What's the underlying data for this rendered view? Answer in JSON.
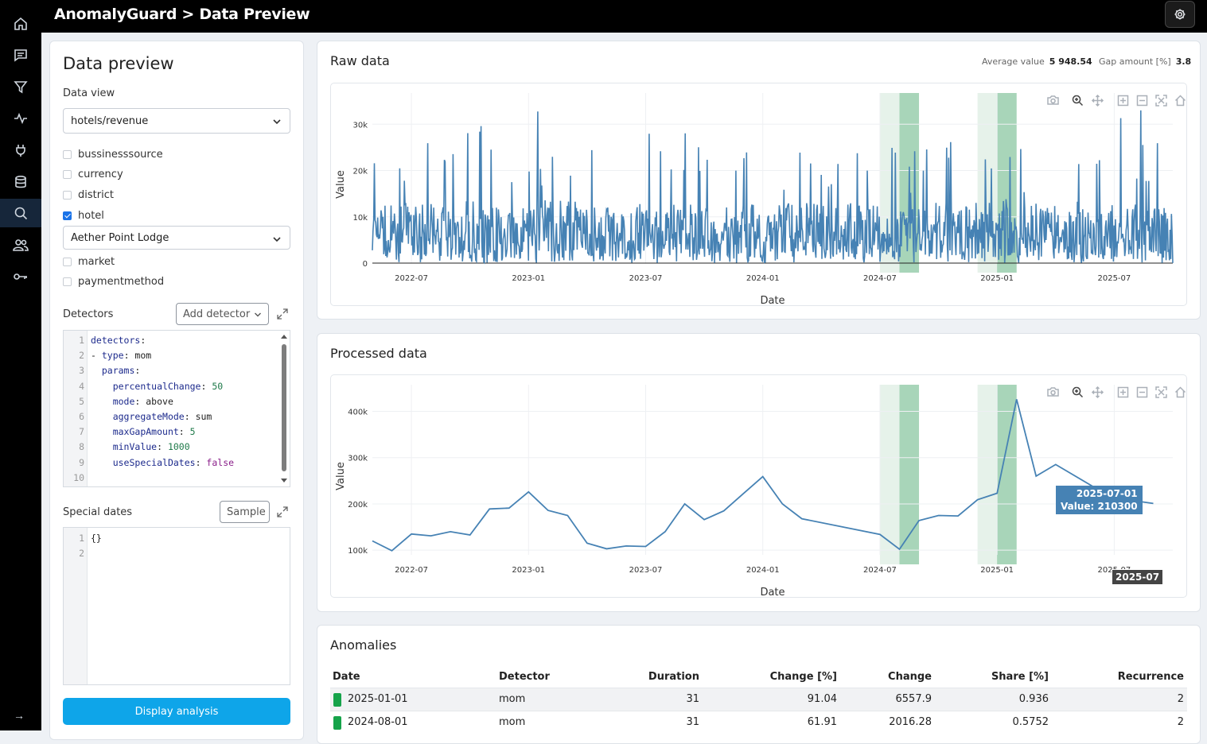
{
  "app": {
    "title": "AnomalyGuard > Data Preview"
  },
  "nav": {
    "items": [
      "home-icon",
      "chat-icon",
      "filter-icon",
      "activity-icon",
      "plug-icon",
      "database-icon",
      "search-icon",
      "users-icon",
      "key-icon"
    ],
    "active": "search-icon",
    "collapse": "→"
  },
  "left": {
    "title": "Data preview",
    "data_view_label": "Data view",
    "data_view_value": "hotels/revenue",
    "dimensions": [
      {
        "label": "bussinesssource",
        "checked": false
      },
      {
        "label": "currency",
        "checked": false
      },
      {
        "label": "district",
        "checked": false
      },
      {
        "label": "hotel",
        "checked": true
      },
      {
        "label": "market",
        "checked": false
      },
      {
        "label": "paymentmethod",
        "checked": false
      }
    ],
    "hotel_value": "Aether Point Lodge",
    "detectors_label": "Detectors",
    "add_detector": "Add detector",
    "detectors_code": [
      {
        "n": "1",
        "parts": [
          [
            "k",
            "detectors"
          ],
          [
            "v",
            ":"
          ]
        ]
      },
      {
        "n": "2",
        "parts": [
          [
            "v",
            "- "
          ],
          [
            "k",
            "type"
          ],
          [
            "v",
            ": mom"
          ]
        ]
      },
      {
        "n": "3",
        "parts": [
          [
            "v",
            "  "
          ],
          [
            "k",
            "params"
          ],
          [
            "v",
            ":"
          ]
        ]
      },
      {
        "n": "4",
        "parts": [
          [
            "v",
            "    "
          ],
          [
            "k",
            "percentualChange"
          ],
          [
            "v",
            ": "
          ],
          [
            "n",
            "50"
          ]
        ]
      },
      {
        "n": "5",
        "parts": [
          [
            "v",
            "    "
          ],
          [
            "k",
            "mode"
          ],
          [
            "v",
            ": above"
          ]
        ]
      },
      {
        "n": "6",
        "parts": [
          [
            "v",
            "    "
          ],
          [
            "k",
            "aggregateMode"
          ],
          [
            "v",
            ": sum"
          ]
        ]
      },
      {
        "n": "7",
        "parts": [
          [
            "v",
            "    "
          ],
          [
            "k",
            "maxGapAmount"
          ],
          [
            "v",
            ": "
          ],
          [
            "n",
            "5"
          ]
        ]
      },
      {
        "n": "8",
        "parts": [
          [
            "v",
            "    "
          ],
          [
            "k",
            "minValue"
          ],
          [
            "v",
            ": "
          ],
          [
            "n",
            "1000"
          ]
        ]
      },
      {
        "n": "9",
        "parts": [
          [
            "v",
            "    "
          ],
          [
            "k",
            "useSpecialDates"
          ],
          [
            "v",
            ": "
          ],
          [
            "b",
            "false"
          ]
        ]
      },
      {
        "n": "10",
        "parts": []
      }
    ],
    "special_dates_label": "Special dates",
    "sample_button": "Sample",
    "special_code": [
      {
        "n": "1",
        "parts": [
          [
            "v",
            "{}"
          ]
        ]
      },
      {
        "n": "2",
        "parts": []
      }
    ],
    "display_button": "Display analysis"
  },
  "raw": {
    "title": "Raw data",
    "avg_label": "Average value",
    "avg_value": "5 948.54",
    "gap_label": "Gap amount [%]",
    "gap_value": "3.8"
  },
  "processed": {
    "title": "Processed data",
    "hover_date": "2025-07-01",
    "hover_value": "Value: 210300",
    "hover_axis": "2025-07"
  },
  "anomalies": {
    "title": "Anomalies",
    "columns": [
      "Date",
      "Detector",
      "Duration",
      "Change [%]",
      "Change",
      "Share [%]",
      "Recurrence"
    ],
    "rows": [
      [
        "2025-01-01",
        "mom",
        "31",
        "91.04",
        "6557.9",
        "0.936",
        "2"
      ],
      [
        "2024-08-01",
        "mom",
        "31",
        "61.91",
        "2016.28",
        "0.5752",
        "2"
      ]
    ],
    "swatch_color": "#16a34a"
  },
  "chart_data": [
    {
      "type": "line",
      "title": "Raw data",
      "xlabel": "Date",
      "ylabel": "Value",
      "x_ticks": [
        "2022-07",
        "2023-01",
        "2023-07",
        "2024-01",
        "2024-07",
        "2025-01",
        "2025-07"
      ],
      "y_ticks": [
        "0",
        "10k",
        "20k",
        "30k"
      ],
      "ylim": [
        0,
        34000
      ],
      "series_color": "#4682b4",
      "shaded_periods": [
        {
          "from": "2024-07-01",
          "to": "2024-09-01",
          "highlight": "2024-08-01"
        },
        {
          "from": "2024-12-01",
          "to": "2025-02-01",
          "highlight": "2025-01-01"
        }
      ],
      "note": "daily series, values mostly 0–15k with spikes up to ~33k"
    },
    {
      "type": "line",
      "title": "Processed data",
      "xlabel": "Date",
      "ylabel": "Value",
      "x_ticks": [
        "2022-07",
        "2023-01",
        "2023-07",
        "2024-01",
        "2024-07",
        "2025-01",
        "2025-07"
      ],
      "y_ticks": [
        "100k",
        "200k",
        "300k",
        "400k"
      ],
      "ylim": [
        90000,
        430000
      ],
      "series_color": "#4682b4",
      "x": [
        "2022-05",
        "2022-06",
        "2022-07",
        "2022-08",
        "2022-09",
        "2022-10",
        "2022-11",
        "2022-12",
        "2023-01",
        "2023-02",
        "2023-03",
        "2023-04",
        "2023-05",
        "2023-06",
        "2023-07",
        "2023-08",
        "2023-09",
        "2023-10",
        "2023-11",
        "2023-12",
        "2024-01",
        "2024-02",
        "2024-03",
        "2024-07",
        "2024-08",
        "2024-09",
        "2024-10",
        "2024-11",
        "2024-12",
        "2025-01",
        "2025-02",
        "2025-03",
        "2025-04",
        "2025-07",
        "2025-08",
        "2025-09"
      ],
      "values": [
        120000,
        99000,
        135000,
        131000,
        140000,
        133000,
        189000,
        191000,
        226000,
        186000,
        175000,
        115000,
        103000,
        109000,
        108000,
        140000,
        200000,
        166000,
        185000,
        222000,
        259000,
        200000,
        168000,
        134000,
        102000,
        164000,
        175000,
        174000,
        209000,
        223000,
        426000,
        260000,
        285000,
        210300,
        207000,
        201000
      ],
      "shaded_periods": [
        {
          "from": "2024-07-01",
          "to": "2024-09-01",
          "highlight": "2024-08-01"
        },
        {
          "from": "2024-12-01",
          "to": "2025-02-01",
          "highlight": "2025-01-01"
        }
      ]
    }
  ]
}
